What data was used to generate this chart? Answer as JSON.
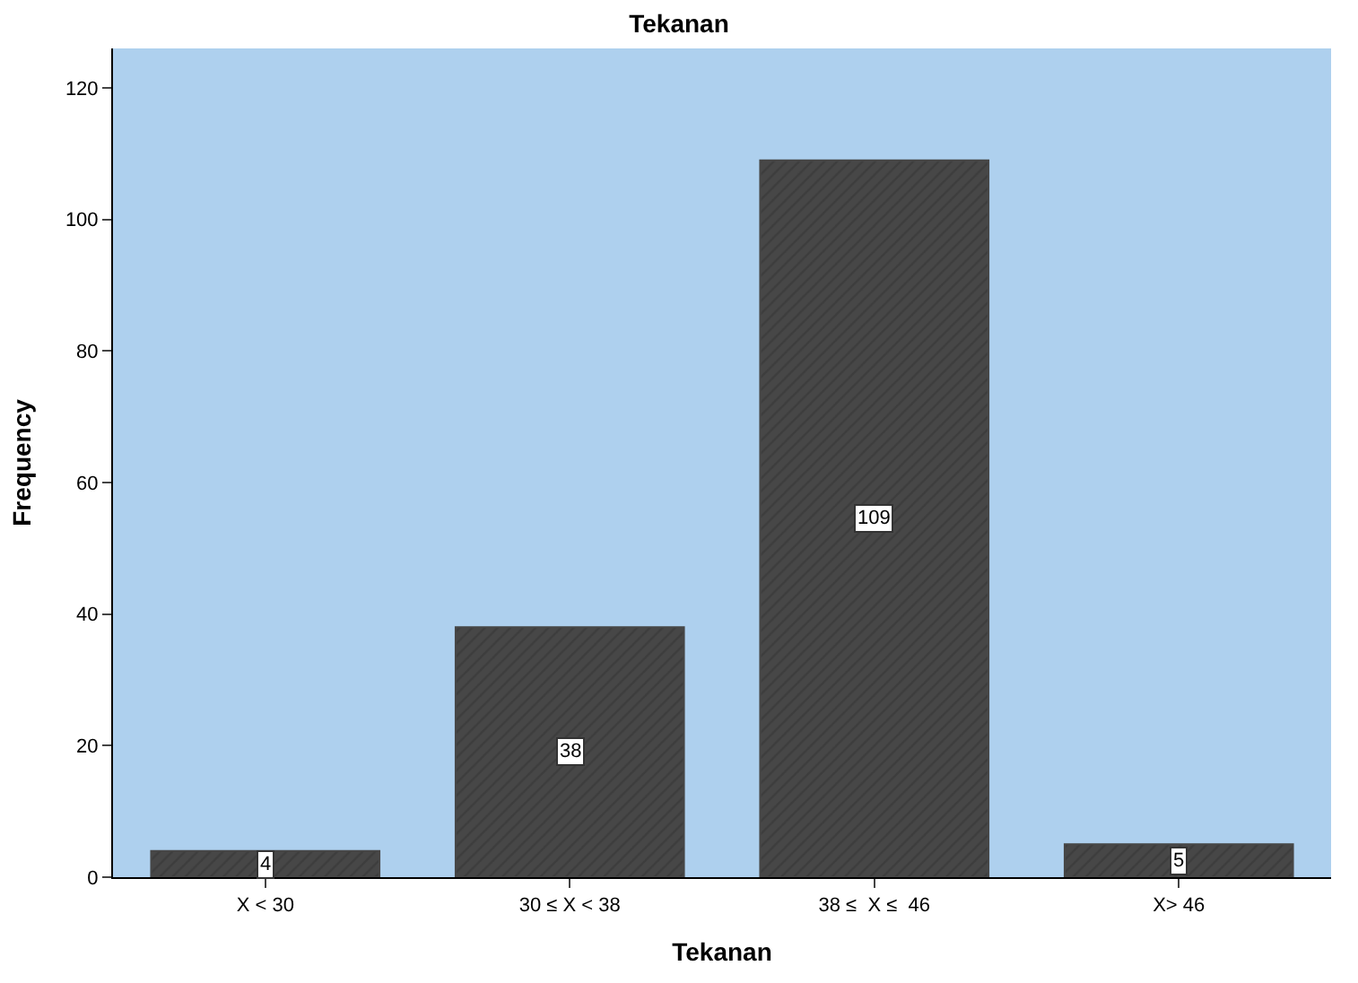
{
  "chart_data": {
    "type": "bar",
    "title": "Tekanan",
    "xlabel": "Tekanan",
    "ylabel": "Frequency",
    "categories": [
      "X < 30",
      "30 ≤ X < 38",
      "38 ≤  X ≤  46",
      "X> 46"
    ],
    "values": [
      4,
      38,
      109,
      5
    ],
    "color": "#474747",
    "ylim": [
      0,
      126
    ],
    "yticks": [
      0,
      20,
      40,
      60,
      80,
      100,
      120
    ],
    "grid": false,
    "legend": false,
    "data_labels": true
  }
}
